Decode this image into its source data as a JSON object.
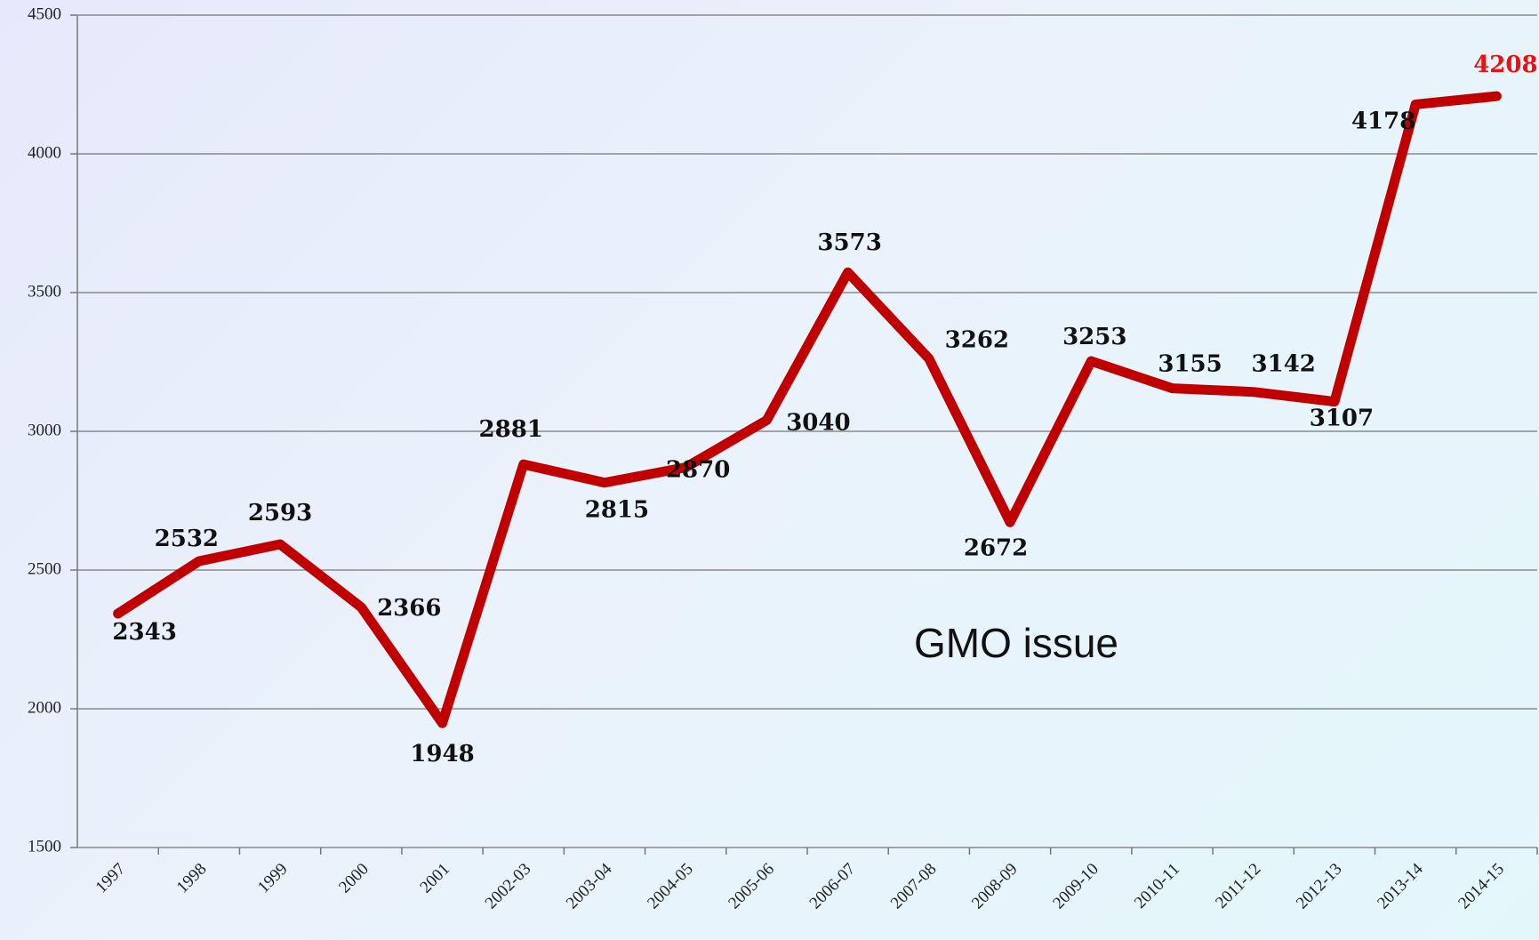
{
  "chart_data": {
    "type": "line",
    "annotation": "GMO  issue",
    "categories": [
      "1997",
      "1998",
      "1999",
      "2000",
      "2001",
      "2002-03",
      "2003-04",
      "2004-05",
      "2005-06",
      "2006-07",
      "2007-08",
      "2008-09",
      "2009-10",
      "2010-11",
      "2011-12",
      "2012-13",
      "2013-14",
      "2014-15"
    ],
    "series": [
      {
        "color": "#c00000",
        "values": [
          2343,
          2532,
          2593,
          2366,
          1948,
          2881,
          2815,
          2870,
          3040,
          3573,
          3262,
          2672,
          3253,
          3155,
          3142,
          3107,
          4178,
          4208
        ],
        "value_label_colors": [
          "#111111",
          "#111111",
          "#111111",
          "#111111",
          "#111111",
          "#111111",
          "#111111",
          "#111111",
          "#111111",
          "#111111",
          "#111111",
          "#111111",
          "#111111",
          "#111111",
          "#111111",
          "#111111",
          "#111111",
          "#ee1111"
        ]
      }
    ],
    "ylim": [
      1500,
      4500
    ],
    "yticks": [
      1500,
      2000,
      2500,
      3000,
      3500,
      4000,
      4500
    ],
    "grid": true
  }
}
